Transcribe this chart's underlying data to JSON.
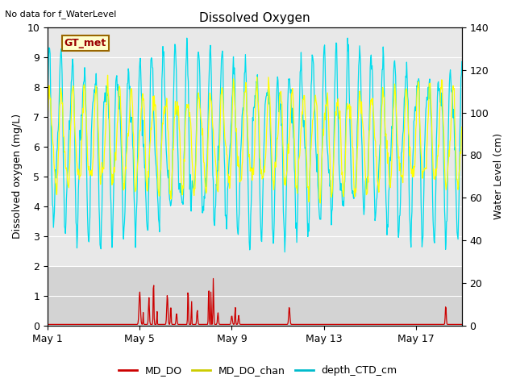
{
  "title": "Dissolved Oxygen",
  "top_left_text": "No data for f_WaterLevel",
  "box_label": "GT_met",
  "ylabel_left": "Dissolved oxygen (mg/L)",
  "ylabel_right": "Water Level (cm)",
  "ylim_left": [
    0.0,
    10.0
  ],
  "ylim_right": [
    0,
    140
  ],
  "yticks_left": [
    0.0,
    1.0,
    2.0,
    3.0,
    4.0,
    5.0,
    6.0,
    7.0,
    8.0,
    9.0,
    10.0
  ],
  "yticks_right": [
    0,
    20,
    40,
    60,
    80,
    100,
    120,
    140
  ],
  "xtick_labels": [
    "May 1",
    "May 5",
    "May 9",
    "May 13",
    "May 17"
  ],
  "xtick_days": [
    0,
    4,
    8,
    12,
    16
  ],
  "xlim": [
    0,
    18
  ],
  "bg_color_plot": "#e8e8e8",
  "bg_color_lower": "#d3d3d3",
  "lower_band_top": 2.0,
  "line_md_do_color": "#cc0000",
  "line_md_do_chan_color": "#ffff00",
  "line_depth_ctd_color": "#00ddee",
  "legend_labels": [
    "MD_DO",
    "MD_DO_chan",
    "depth_CTD_cm"
  ],
  "legend_colors": [
    "#cc0000",
    "#cccc00",
    "#00bbcc"
  ],
  "seed": 42
}
